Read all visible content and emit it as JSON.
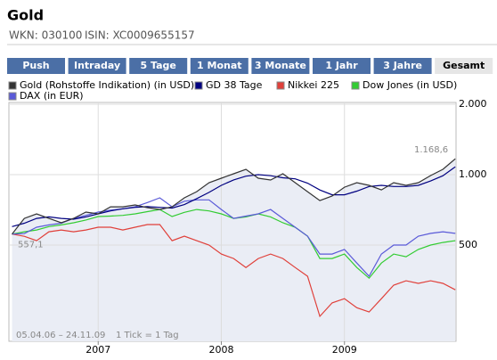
{
  "header": {
    "title": "Gold",
    "wkn": "WKN: 030100",
    "isin": "ISIN: XC0009655157"
  },
  "tabs": [
    "Push",
    "Intraday",
    "5 Tage",
    "1 Monat",
    "3 Monate",
    "1 Jahr",
    "3 Jahre",
    "Gesamt"
  ],
  "active_tab": 7,
  "chart_data": {
    "type": "line",
    "log_scale": true,
    "grid": true,
    "x": [
      2006.3,
      2006.4,
      2006.5,
      2006.6,
      2006.7,
      2006.8,
      2006.9,
      2007.0,
      2007.1,
      2007.2,
      2007.3,
      2007.4,
      2007.5,
      2007.6,
      2007.7,
      2007.8,
      2007.9,
      2008.0,
      2008.1,
      2008.2,
      2008.3,
      2008.4,
      2008.5,
      2008.6,
      2008.7,
      2008.8,
      2008.9,
      2009.0,
      2009.1,
      2009.2,
      2009.3,
      2009.4,
      2009.5,
      2009.6,
      2009.7,
      2009.8,
      2009.9
    ],
    "xlim": [
      2006.275,
      2009.906
    ],
    "xticks": [
      2007,
      2008,
      2009
    ],
    "ylim": [
      194,
      2035
    ],
    "yticks": [
      {
        "value": 2000,
        "label": "2.000"
      },
      {
        "value": 1000,
        "label": "1.000"
      },
      500
    ],
    "series": [
      {
        "name": "Gold (Rohstoffe Indikation) (in USD)",
        "color": "#333333",
        "fill": "#eaedf5",
        "values": [
          557.1,
          650,
          680,
          650,
          623,
          650,
          692,
          680,
          729,
          729,
          742,
          723,
          710,
          729,
          796,
          846,
          924,
          966,
          1009,
          1054,
          966,
          949,
          1009,
          924,
          846,
          775,
          810,
          884,
          924,
          900,
          861,
          924,
          900,
          924,
          991,
          1054,
          1168.6
        ]
      },
      {
        "name": "GD 38 Tage",
        "color": "#000080",
        "values": [
          600,
          620,
          650,
          660,
          650,
          645,
          660,
          680,
          700,
          715,
          725,
          730,
          725,
          720,
          745,
          790,
          840,
          900,
          950,
          985,
          1000,
          990,
          970,
          960,
          920,
          860,
          820,
          820,
          850,
          890,
          900,
          890,
          890,
          900,
          940,
          990,
          1080
        ]
      },
      {
        "name": "Nikkei 225",
        "color": "#e0403a",
        "values": [
          557.1,
          545,
          522,
          570,
          580,
          570,
          580,
          596,
          596,
          580,
          596,
          612,
          612,
          522,
          546,
          522,
          500,
          458,
          438,
          401,
          438,
          458,
          438,
          401,
          368,
          248,
          283,
          295,
          270,
          259,
          295,
          337,
          352,
          343,
          352,
          343,
          322
        ]
      },
      {
        "name": "Dow Jones (in USD)",
        "color": "#33cc33",
        "values": [
          557.1,
          570,
          580,
          600,
          610,
          623,
          640,
          662,
          665,
          670,
          680,
          695,
          710,
          662,
          690,
          710,
          700,
          680,
          650,
          660,
          680,
          660,
          623,
          596,
          546,
          438,
          438,
          458,
          401,
          361,
          419,
          458,
          446,
          479,
          500,
          513,
          522
        ]
      },
      {
        "name": "DAX (in EUR)",
        "color": "#5a5ad8",
        "values": [
          557.1,
          560,
          596,
          610,
          620,
          650,
          670,
          692,
          705,
          715,
          729,
          760,
          796,
          729,
          770,
          780,
          780,
          710,
          650,
          665,
          680,
          710,
          650,
          596,
          546,
          458,
          458,
          479,
          419,
          368,
          458,
          500,
          500,
          546,
          561,
          570,
          561
        ]
      }
    ],
    "start_label": "557,1",
    "end_label": "1.168,6",
    "date_range": "05.04.06 – 24.11.09",
    "tick_note": "1 Tick = 1 Tag"
  }
}
